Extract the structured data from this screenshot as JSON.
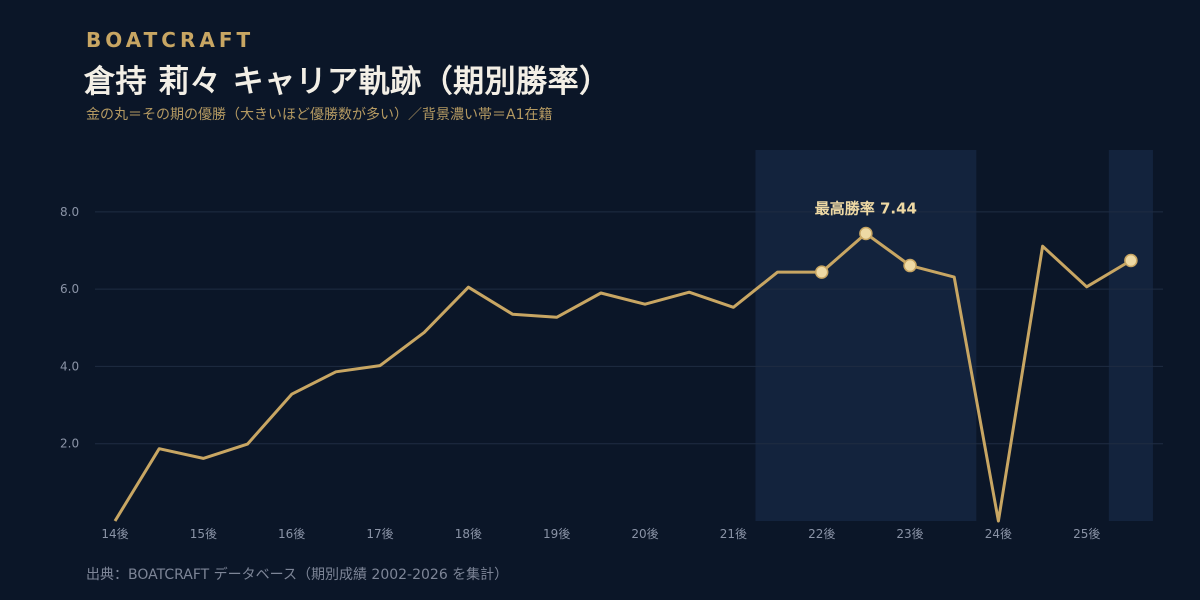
{
  "header": {
    "brand": "BOATCRAFT",
    "title": "倉持 莉々 キャリア軌跡（期別勝率）",
    "subtitle": "金の丸＝その期の優勝（大きいほど優勝数が多い）／背景濃い帯＝A1在籍",
    "source": "出典：BOATCRAFT データベース（期別成績 2002-2026 を集計）"
  },
  "colors": {
    "background": "#0b1628",
    "a1_band": "#13233d",
    "line": "#c8a663",
    "win_marker": "#eed9a4",
    "grid": "#1f2c42"
  },
  "chart_data": {
    "type": "line",
    "title": "倉持 莉々 キャリア軌跡（期別勝率）",
    "x_tick_labels": [
      "14後",
      "15後",
      "16後",
      "17後",
      "18後",
      "19後",
      "20後",
      "21後",
      "22後",
      "23後",
      "24後",
      "25後"
    ],
    "x": [
      "14後",
      "15前",
      "15後",
      "16前",
      "16後",
      "17前",
      "17後",
      "18前",
      "18後",
      "19前",
      "19後",
      "20前",
      "20後",
      "21前",
      "21後",
      "22前",
      "22後",
      "23前",
      "23後",
      "24前",
      "24後",
      "25前",
      "25後",
      "26前"
    ],
    "series": [
      {
        "values": [
          0.0,
          1.87,
          1.62,
          1.99,
          3.28,
          3.86,
          4.02,
          4.88,
          6.05,
          5.35,
          5.27,
          5.9,
          5.61,
          5.92,
          5.53,
          6.44,
          6.44,
          7.44,
          6.61,
          6.31,
          0.0,
          7.11,
          6.06,
          6.74
        ]
      }
    ],
    "wins": [
      {
        "x": "22後",
        "value": 6.44,
        "count": 1
      },
      {
        "x": "23前",
        "value": 7.44,
        "count": 1
      },
      {
        "x": "23後",
        "value": 6.61,
        "count": 1
      },
      {
        "x": "26前",
        "value": 6.74,
        "count": 1
      }
    ],
    "a1_periods": [
      {
        "from": "22前",
        "to": "24前"
      },
      {
        "from": "26前",
        "to": "26前"
      }
    ],
    "annotation": {
      "x": "23前",
      "text": "最高勝率 7.44"
    },
    "y_ticks": [
      "2.0",
      "4.0",
      "6.0",
      "8.0"
    ],
    "ylim": [
      0,
      9.6
    ],
    "grid": true,
    "legend": "none"
  }
}
